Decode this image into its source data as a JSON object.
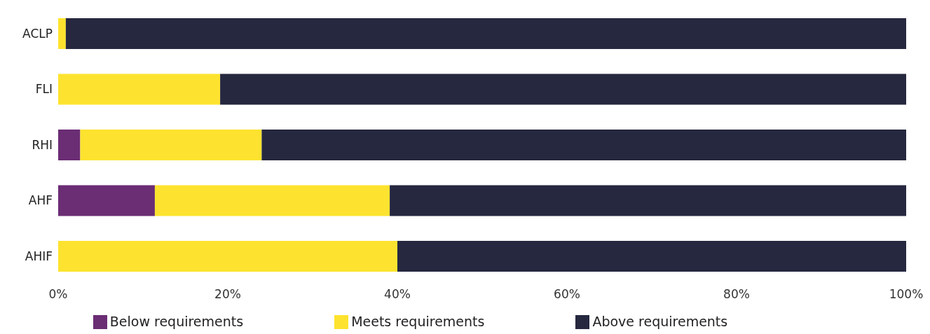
{
  "chart_data": {
    "type": "bar",
    "orientation": "horizontal",
    "stacked": true,
    "categories": [
      "ACLP",
      "FLI",
      "RHI",
      "AHF",
      "AHIF"
    ],
    "series": [
      {
        "name": "Below requirements",
        "color": "#6b2d74",
        "values": [
          0,
          0,
          2.6,
          11.4,
          0
        ]
      },
      {
        "name": "Meets requirements",
        "color": "#fde32f",
        "values": [
          0.9,
          19.1,
          21.4,
          27.7,
          40.0
        ]
      },
      {
        "name": "Above requirements",
        "color": "#262840",
        "values": [
          99.1,
          80.9,
          76.0,
          60.9,
          60.0
        ]
      }
    ],
    "xlim": [
      0,
      100
    ],
    "xticks": [
      {
        "value": 0,
        "label": "0%"
      },
      {
        "value": 20,
        "label": "20%"
      },
      {
        "value": 40,
        "label": "40%"
      },
      {
        "value": 60,
        "label": "60%"
      },
      {
        "value": 80,
        "label": "80%"
      },
      {
        "value": 100,
        "label": "100%"
      }
    ],
    "grid": false,
    "legend": "bottom"
  }
}
